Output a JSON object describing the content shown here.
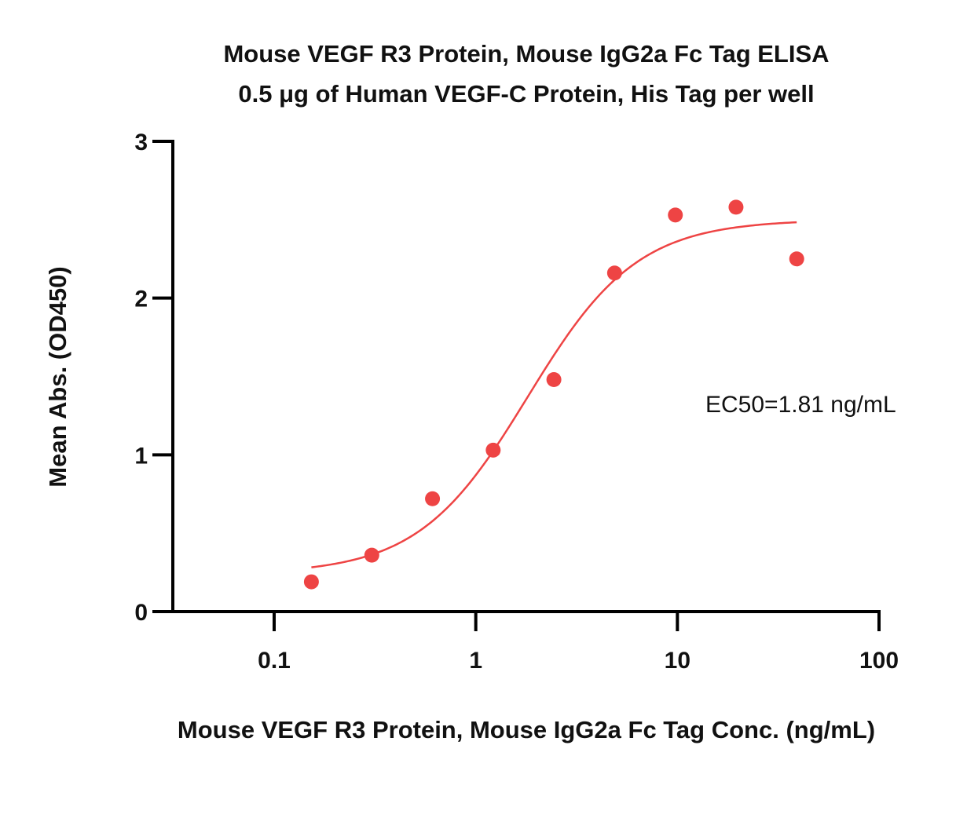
{
  "chart_data": {
    "type": "scatter",
    "title_line1": "Mouse VEGF R3 Protein, Mouse IgG2a Fc Tag ELISA",
    "title_line2": "0.5 μg of Human VEGF-C Protein, His Tag per well",
    "xlabel": "Mouse VEGF R3 Protein, Mouse IgG2a Fc Tag Conc. (ng/mL)",
    "ylabel": "Mean Abs. (OD450)",
    "xscale": "log10",
    "xlim": [
      0.03,
      100
    ],
    "ylim": [
      0,
      3
    ],
    "x_ticks": [
      0.1,
      1,
      10,
      100
    ],
    "x_tick_labels": [
      "0.1",
      "1",
      "10",
      "100"
    ],
    "y_ticks": [
      0,
      1,
      2,
      3
    ],
    "y_tick_labels": [
      "0",
      "1",
      "2",
      "3"
    ],
    "series": [
      {
        "name": "Mean Abs.",
        "color": "#EE4444",
        "x": [
          0.153,
          0.305,
          0.61,
          1.22,
          2.44,
          4.88,
          9.77,
          19.53,
          39.06
        ],
        "y": [
          0.19,
          0.36,
          0.72,
          1.03,
          1.48,
          2.16,
          2.53,
          2.58,
          2.25
        ]
      }
    ],
    "fit": {
      "model": "4PL",
      "color": "#EE4444",
      "bottom": 0.24,
      "top": 2.5,
      "ec50": 1.81,
      "hill": 1.6,
      "x_range": [
        0.153,
        39.06
      ]
    },
    "annotation": "EC50=1.81 ng/mL"
  }
}
